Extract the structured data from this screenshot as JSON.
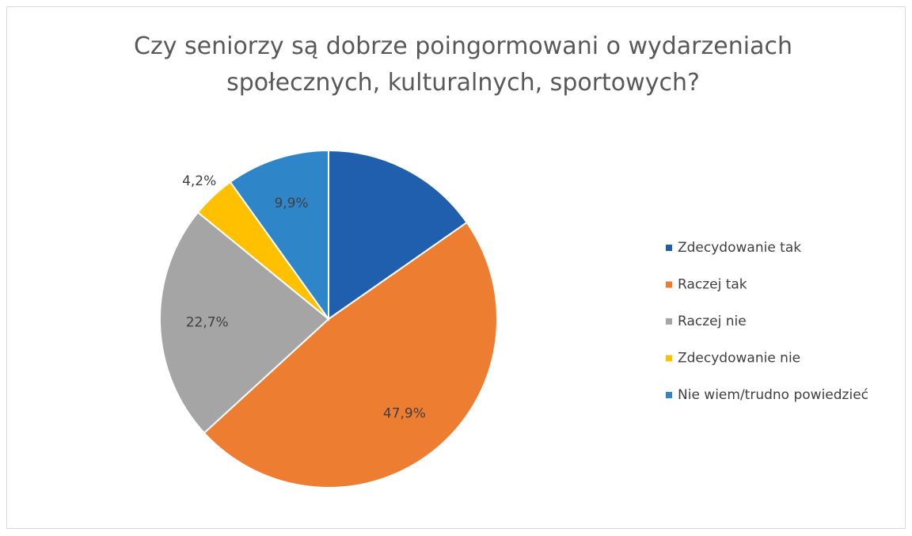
{
  "chart_data": {
    "type": "pie",
    "title": "Czy seniorzy są dobrze poingormowani o wydarzeniach społecznych, kulturalnych, sportowych?",
    "categories": [
      "Zdecydowanie tak",
      "Raczej tak",
      "Raczej nie",
      "Zdecydowanie nie",
      "Nie wiem/trudno powiedzieć"
    ],
    "values": [
      15.3,
      47.9,
      22.7,
      4.2,
      9.9
    ],
    "value_labels": [
      null,
      "47,9%",
      "22,7%",
      "4,2%",
      "9,9%"
    ],
    "colors": [
      "#1f5fad",
      "#ed7d31",
      "#a5a5a5",
      "#ffc000",
      "#2e86c8"
    ],
    "legend": "right"
  }
}
